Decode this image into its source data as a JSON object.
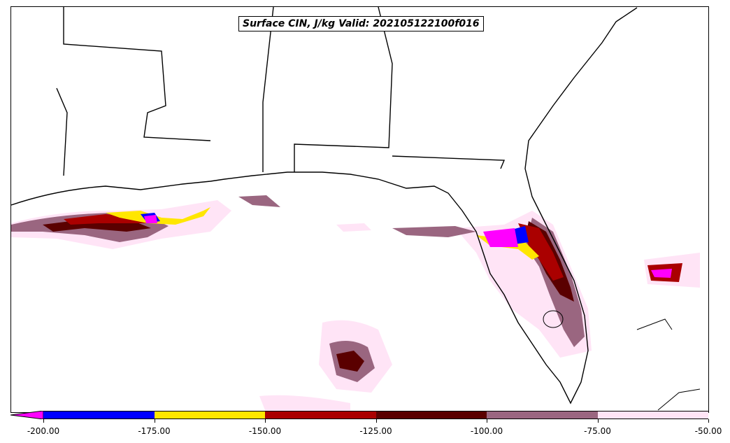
{
  "title": "Surface CIN, J/kg Valid: 202105122100f016",
  "colorbar": {
    "ticks": [
      "-200.00",
      "-175.00",
      "-150.00",
      "-125.00",
      "-100.00",
      "-75.00",
      "-50.00"
    ],
    "colors": [
      "#ff00ff",
      "#0000ff",
      "#ffe600",
      "#aa0000",
      "#5a0000",
      "#9a6680",
      "#ffe4f6"
    ],
    "extend": "min"
  },
  "colors": {
    "magenta": "#ff00ff",
    "blue": "#0000ff",
    "yellow": "#ffe600",
    "red": "#aa0000",
    "darkred": "#5a0000",
    "mauve": "#9a6680",
    "pink": "#ffe4f6"
  }
}
